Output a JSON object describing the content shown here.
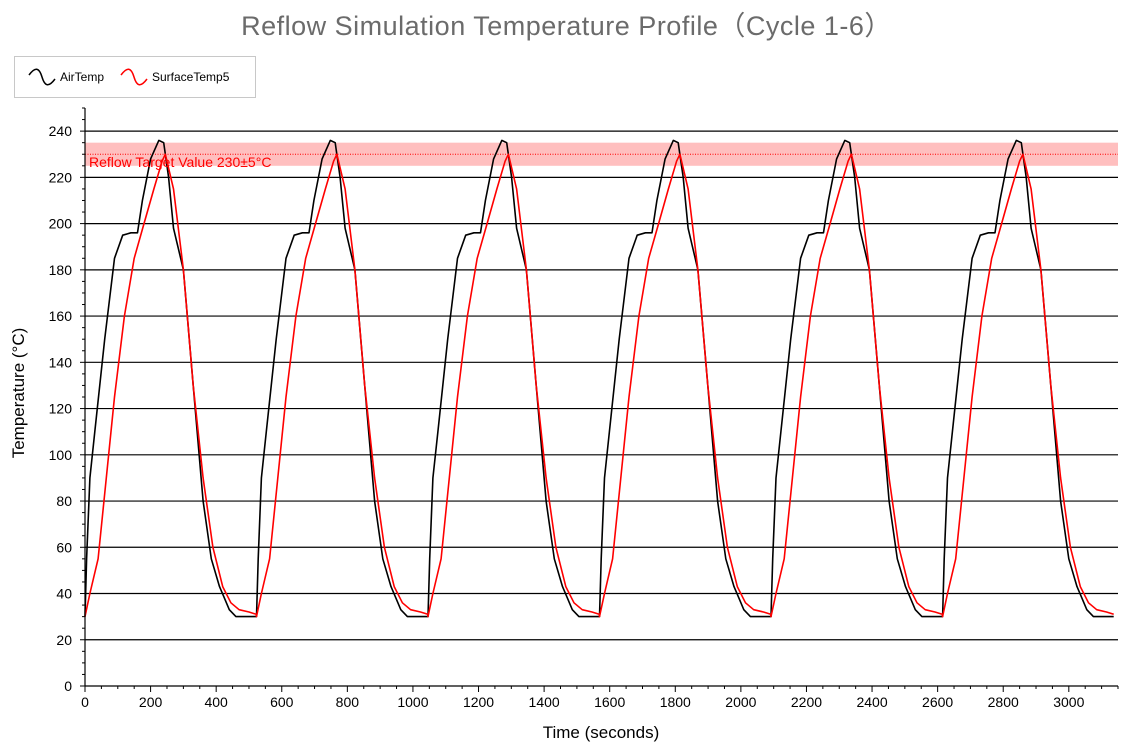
{
  "chart_data": {
    "type": "line",
    "title": "Reflow Simulation Temperature Profile（Cycle 1-6）",
    "xlabel": "Time (seconds)",
    "ylabel": "Temperature (°C)",
    "xlim": [
      0,
      3150
    ],
    "ylim": [
      0,
      250
    ],
    "x_ticks": [
      0,
      200,
      400,
      600,
      800,
      1000,
      1200,
      1400,
      1600,
      1800,
      2000,
      2200,
      2400,
      2600,
      2800,
      3000
    ],
    "y_ticks": [
      0,
      20,
      40,
      60,
      80,
      100,
      120,
      140,
      160,
      180,
      200,
      220,
      240
    ],
    "grid": "horizontal",
    "legend_position": "top-left",
    "target_band": {
      "label": "Reflow Target Value 230±5°C",
      "center": 230,
      "low": 225,
      "high": 235,
      "color": "#ff0000"
    },
    "series": [
      {
        "name": "AirTemp",
        "color": "#000000",
        "cycle_length": 523,
        "cycles": 6,
        "x": [
          0,
          5,
          15,
          30,
          60,
          90,
          115,
          140,
          160,
          175,
          200,
          225,
          240,
          255,
          270,
          300,
          330,
          360,
          385,
          410,
          425,
          440,
          460,
          480,
          510,
          522
        ],
        "y": [
          30,
          55,
          90,
          110,
          150,
          185,
          195,
          196,
          196,
          210,
          228,
          236,
          235,
          220,
          198,
          180,
          130,
          80,
          55,
          43,
          38,
          33,
          30,
          30,
          30,
          30
        ]
      },
      {
        "name": "SurfaceTemp5",
        "color": "#ff0000",
        "cycle_length": 523,
        "cycles": 6,
        "x": [
          0,
          15,
          40,
          65,
          90,
          120,
          150,
          180,
          210,
          235,
          245,
          270,
          300,
          330,
          360,
          390,
          420,
          445,
          470,
          500,
          522
        ],
        "y": [
          30,
          40,
          55,
          90,
          125,
          160,
          185,
          200,
          215,
          227,
          230,
          215,
          180,
          130,
          90,
          60,
          43,
          36,
          33,
          32,
          31
        ]
      }
    ]
  }
}
